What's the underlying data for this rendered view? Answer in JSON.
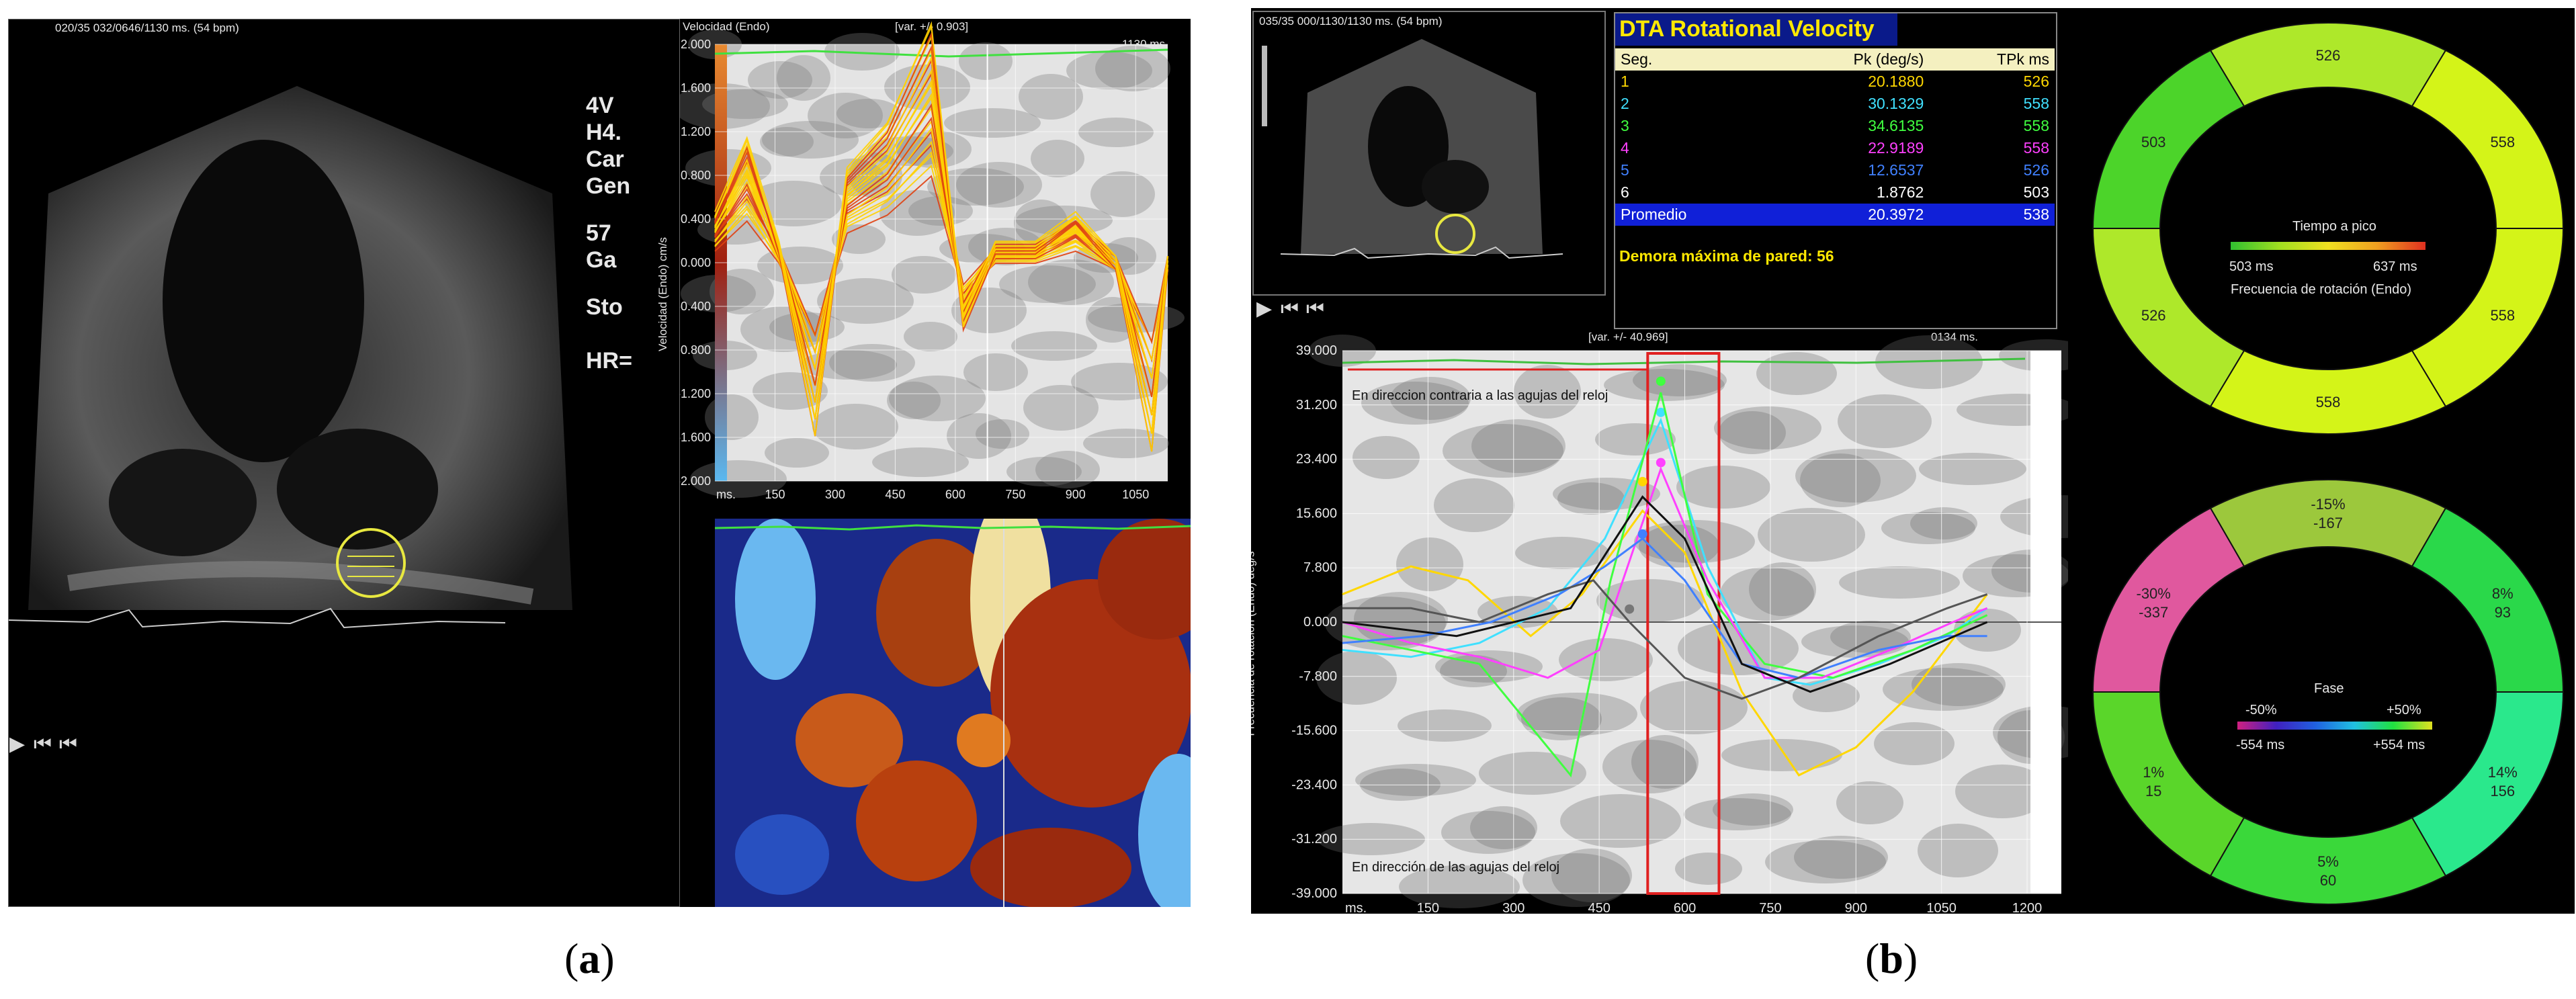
{
  "panel_a": {
    "echo": {
      "header": "020/35  032/0646/1130 ms.  (54 bpm)",
      "side_labels": [
        "4V",
        "H4.",
        "Car",
        "Gen",
        "57",
        "Ga",
        "Sto",
        "HR="
      ]
    },
    "velocity_plot": {
      "title": "Velocidad (Endo)",
      "variance": "[var. +/- 0.903]",
      "time": "1130 ms.",
      "ylabel": "Velocidad (Endo) cm/s",
      "x_unit": "ms.",
      "yticks": [
        "2.000",
        "1.600",
        "1.200",
        "0.800",
        "0.400",
        "0.000",
        "-0.400",
        "-0.800",
        "-1.200",
        "-1.600",
        "-2.000"
      ],
      "xticks": [
        "150",
        "300",
        "450",
        "600",
        "750",
        "900",
        "1050"
      ]
    },
    "caption_letter": "a"
  },
  "panel_b": {
    "thumb": {
      "header": "035/35  000/1130/1130 ms.  (54 bpm)"
    },
    "table": {
      "title": "DTA Rotational Velocity",
      "headers": [
        "Seg.",
        "Pk (deg/s)",
        "TPk ms"
      ],
      "rows": [
        {
          "seg": "1",
          "pk": "20.1880",
          "tpk": "526",
          "color": "#ffd700"
        },
        {
          "seg": "2",
          "pk": "30.1329",
          "tpk": "558",
          "color": "#40e0ff"
        },
        {
          "seg": "3",
          "pk": "34.6135",
          "tpk": "558",
          "color": "#40ff40"
        },
        {
          "seg": "4",
          "pk": "22.9189",
          "tpk": "558",
          "color": "#ff40ff"
        },
        {
          "seg": "5",
          "pk": "12.6537",
          "tpk": "526",
          "color": "#4080ff"
        },
        {
          "seg": "6",
          "pk": "1.8762",
          "tpk": "503",
          "color": "#ffffff"
        }
      ],
      "average": {
        "label": "Promedio",
        "pk": "20.3972",
        "tpk": "538"
      },
      "footer": "Demora máxima de pared: 56"
    },
    "rotation_plot": {
      "variance": "[var. +/- 40.969]",
      "time": "0134 ms.",
      "ylabel": "Frecuencia de rotación (Endo)  deg/s",
      "x_unit": "ms.",
      "yticks": [
        "39.000",
        "31.200",
        "23.400",
        "15.600",
        "7.800",
        "0.000",
        "-7.800",
        "-15.600",
        "-23.400",
        "-31.200",
        "-39.000"
      ],
      "xticks": [
        "150",
        "300",
        "450",
        "600",
        "750",
        "900",
        "1050",
        "1200"
      ],
      "annotation_top": "En direccion contraria a las agujas del reloj",
      "annotation_bottom": "En dirección de las agujas del reloj"
    },
    "ring_time": {
      "segments": [
        {
          "value": "526",
          "color": "#aee82a"
        },
        {
          "value": "558",
          "color": "#d4f418"
        },
        {
          "value": "558",
          "color": "#d4f418"
        },
        {
          "value": "558",
          "color": "#d4f418"
        },
        {
          "value": "526",
          "color": "#aee82a"
        },
        {
          "value": "503",
          "color": "#4cd42a"
        }
      ],
      "legend_title": "Tiempo a pico",
      "legend_min": "503 ms",
      "legend_max": "637 ms",
      "subtitle": "Frecuencia de rotación (Endo)"
    },
    "ring_phase": {
      "segments": [
        {
          "pct": "-15%",
          "ms": "-167",
          "color": "#9cc83c"
        },
        {
          "pct": "8%",
          "ms": "93",
          "color": "#2ad84a"
        },
        {
          "pct": "14%",
          "ms": "156",
          "color": "#2ae88c"
        },
        {
          "pct": "5%",
          "ms": "60",
          "color": "#3ad83a"
        },
        {
          "pct": "1%",
          "ms": "15",
          "color": "#5ad62a"
        },
        {
          "pct": "-30%",
          "ms": "-337",
          "color": "#e0589e"
        }
      ],
      "legend_title": "Fase",
      "legend_min_pct": "-50%",
      "legend_max_pct": "+50%",
      "legend_min_ms": "-554 ms",
      "legend_max_ms": "+554 ms"
    },
    "caption_letter": "b"
  }
}
